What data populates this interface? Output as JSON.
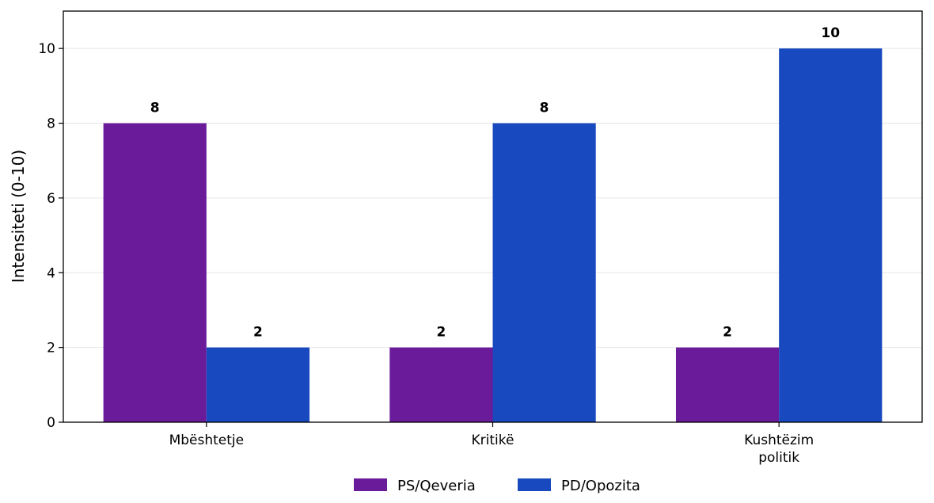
{
  "chart_data": {
    "type": "bar",
    "categories": [
      [
        "Mbështetje"
      ],
      [
        "Kritikë"
      ],
      [
        "Kushtëzim",
        "politik"
      ]
    ],
    "series": [
      {
        "name": "PS/Qeveria",
        "values": [
          8,
          2,
          2
        ],
        "color": "#6a1b9a"
      },
      {
        "name": "PD/Opozita",
        "values": [
          2,
          8,
          10
        ],
        "color": "#1849be"
      }
    ],
    "ylabel": "Intensiteti (0-10)",
    "ylim": [
      0,
      11
    ],
    "yticks": [
      0,
      2,
      4,
      6,
      8,
      10
    ],
    "grid": true,
    "legend_position": "bottom-center"
  }
}
